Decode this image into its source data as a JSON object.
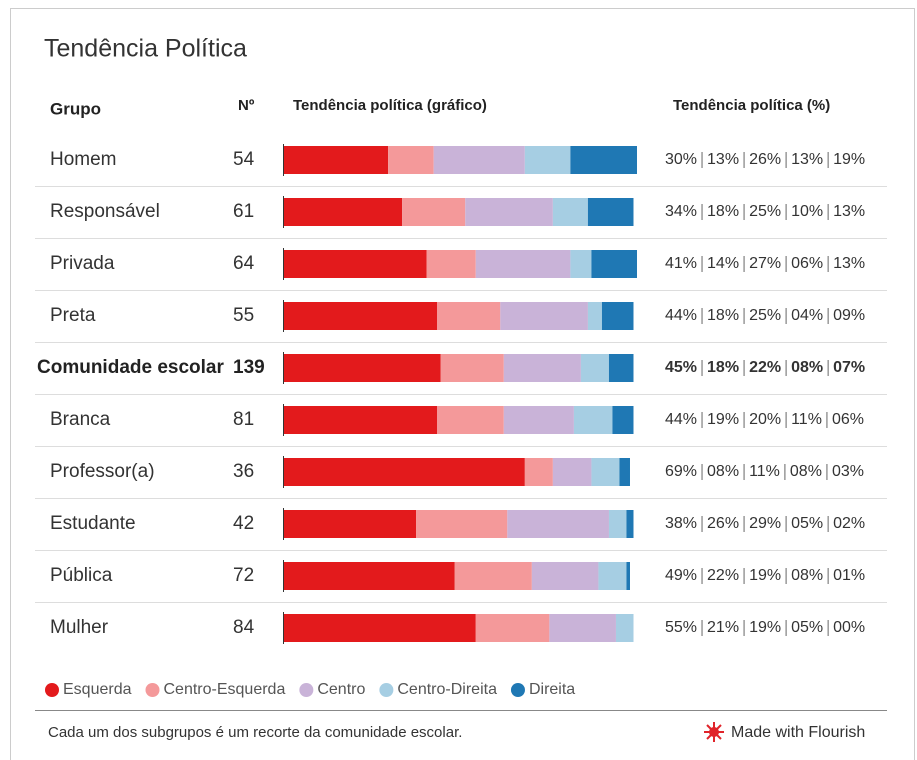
{
  "chart_data": {
    "type": "stacked_bar_table",
    "title": "Tendência Política",
    "columns": [
      "Grupo",
      "Nº",
      "Tendência política (gráfico)",
      "Tendência política (%)"
    ],
    "categories": [
      "Homem",
      "Responsável",
      "Privada",
      "Preta",
      "Comunidade escolar",
      "Branca",
      "Professor(a)",
      "Estudante",
      "Pública",
      "Mulher"
    ],
    "counts": [
      54,
      61,
      64,
      55,
      139,
      81,
      36,
      42,
      72,
      84
    ],
    "bold_category": 4,
    "xlim": [
      0,
      101
    ],
    "series": [
      {
        "name": "Esquerda",
        "color": "#e31a1c",
        "values": [
          30,
          34,
          41,
          44,
          45,
          44,
          69,
          38,
          49,
          55
        ],
        "value_labels": [
          "30%",
          "34%",
          "41%",
          "44%",
          "45%",
          "44%",
          "69%",
          "38%",
          "49%",
          "55%"
        ]
      },
      {
        "name": "Centro-Esquerda",
        "color": "#f4999a",
        "values": [
          13,
          18,
          14,
          18,
          18,
          19,
          8,
          26,
          22,
          21
        ],
        "value_labels": [
          "13%",
          "18%",
          "14%",
          "18%",
          "18%",
          "19%",
          "08%",
          "26%",
          "22%",
          "21%"
        ]
      },
      {
        "name": "Centro",
        "color": "#c9b3d8",
        "values": [
          26,
          25,
          27,
          25,
          22,
          20,
          11,
          29,
          19,
          19
        ],
        "value_labels": [
          "26%",
          "25%",
          "27%",
          "25%",
          "22%",
          "20%",
          "11%",
          "29%",
          "19%",
          "19%"
        ]
      },
      {
        "name": "Centro-Direita",
        "color": "#a6cee3",
        "values": [
          13,
          10,
          6,
          4,
          8,
          11,
          8,
          5,
          8,
          5
        ],
        "value_labels": [
          "13%",
          "10%",
          "06%",
          "04%",
          "08%",
          "11%",
          "08%",
          "05%",
          "08%",
          "05%"
        ]
      },
      {
        "name": "Direita",
        "color": "#1f78b4",
        "values": [
          19,
          13,
          13,
          9,
          7,
          6,
          3,
          2,
          1,
          0
        ],
        "value_labels": [
          "19%",
          "13%",
          "13%",
          "09%",
          "07%",
          "06%",
          "03%",
          "02%",
          "01%",
          "00%"
        ]
      }
    ],
    "footnote": "Cada um dos subgrupos é um recorte da comunidade escolar.",
    "credit": "Made with Flourish"
  }
}
